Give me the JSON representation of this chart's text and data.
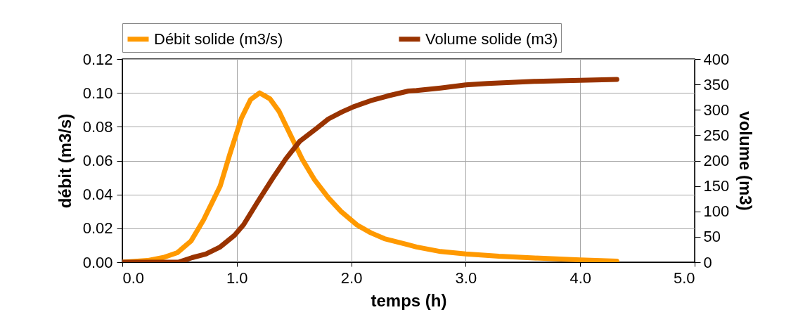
{
  "chart_data": {
    "type": "line",
    "xlabel": "temps (h)",
    "ylabel": "débit (m3/s)",
    "y2label": "volume (m3)",
    "xlim": [
      0,
      5
    ],
    "xticks": [
      {
        "value": 0,
        "label": "0.0"
      },
      {
        "value": 1,
        "label": "1.0"
      },
      {
        "value": 2,
        "label": "2.0"
      },
      {
        "value": 3,
        "label": "3.0"
      },
      {
        "value": 4,
        "label": "4.0"
      },
      {
        "value": 5,
        "label": "5.0"
      }
    ],
    "ylim": [
      0,
      0.12
    ],
    "yticks": [
      {
        "value": 0,
        "label": "0.00"
      },
      0.02,
      0.04,
      0.06,
      0.08,
      {
        "value": 0.1,
        "label": "0.10"
      },
      0.12
    ],
    "y2lim": [
      0,
      400
    ],
    "y2ticks": [
      0,
      50,
      100,
      150,
      200,
      250,
      300,
      350,
      400
    ],
    "grid": true,
    "legend": "top",
    "line_style": "solid",
    "marker": "none",
    "series": [
      {
        "name": "Débit solide (m3/s)",
        "color": "#ff9900",
        "x": [
          0,
          0.22,
          0.36,
          0.48,
          0.6,
          0.71,
          0.855,
          0.94,
          1.04,
          1.12,
          1.2,
          1.29,
          1.37,
          1.47,
          1.57,
          1.68,
          1.8,
          1.91,
          2.05,
          2.17,
          2.29,
          2.49,
          2.57,
          2.78,
          3.0,
          3.29,
          3.6,
          4.0,
          4.32
        ],
        "values": [
          0,
          0.001,
          0.0028,
          0.0056,
          0.0125,
          0.025,
          0.045,
          0.064,
          0.085,
          0.096,
          0.1,
          0.0965,
          0.089,
          0.075,
          0.061,
          0.0486,
          0.038,
          0.03,
          0.022,
          0.0174,
          0.0139,
          0.0104,
          0.009,
          0.0063,
          0.0049,
          0.0035,
          0.0025,
          0.0014,
          0.0006
        ]
      },
      {
        "name": "Volume solide (m3)",
        "color": "#993300",
        "axis": "y2",
        "x": [
          0,
          0.49,
          0.61,
          0.73,
          0.855,
          0.98,
          1.06,
          1.18,
          1.31,
          1.43,
          1.55,
          1.7,
          1.8,
          1.92,
          2.02,
          2.17,
          2.33,
          2.5,
          2.57,
          2.78,
          3.0,
          3.19,
          3.6,
          4.0,
          4.32
        ],
        "values": [
          0,
          0,
          9,
          16,
          30,
          53,
          74,
          118,
          164,
          204,
          238,
          264,
          282,
          296,
          306,
          318,
          328,
          337,
          338,
          343,
          349,
          352,
          356,
          358,
          360
        ]
      }
    ]
  }
}
